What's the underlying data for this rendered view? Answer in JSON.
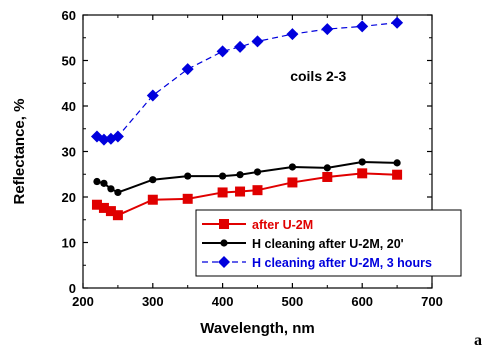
{
  "chart_data": {
    "type": "line",
    "xlabel": "Wavelength, nm",
    "ylabel": "Reflectance, %",
    "xlim": [
      200,
      700
    ],
    "ylim": [
      0,
      60
    ],
    "xticks": [
      "200",
      "300",
      "400",
      "500",
      "600",
      "700"
    ],
    "yticks": [
      "0",
      "10",
      "20",
      "30",
      "40",
      "50",
      "60"
    ],
    "annotation": "coils 2-3",
    "panel_label": "a",
    "legend_position": "bottom-right",
    "series": [
      {
        "name": "after U-2M",
        "color": "#e00000",
        "marker": "square",
        "line": "solid",
        "x": [
          220,
          230,
          240,
          250,
          300,
          350,
          400,
          425,
          450,
          500,
          550,
          600,
          650
        ],
        "y": [
          18.3,
          17.6,
          16.9,
          16.0,
          19.4,
          19.6,
          21.0,
          21.2,
          21.5,
          23.2,
          24.4,
          25.2,
          24.9
        ]
      },
      {
        "name": "H cleaning after U-2M, 20'",
        "color": "#000000",
        "marker": "circle",
        "line": "solid",
        "x": [
          220,
          230,
          240,
          250,
          300,
          350,
          400,
          425,
          450,
          500,
          550,
          600,
          650
        ],
        "y": [
          23.4,
          23.0,
          21.8,
          21.0,
          23.8,
          24.6,
          24.6,
          24.9,
          25.5,
          26.6,
          26.4,
          27.7,
          27.5
        ]
      },
      {
        "name": "H cleaning after U-2M, 3 hours",
        "color": "#0000dd",
        "marker": "diamond",
        "line": "dashed",
        "x": [
          220,
          230,
          240,
          250,
          300,
          350,
          400,
          425,
          450,
          500,
          550,
          600,
          650
        ],
        "y": [
          33.3,
          32.6,
          32.8,
          33.3,
          42.3,
          48.1,
          52.0,
          53.0,
          54.2,
          55.8,
          56.9,
          57.5,
          58.3
        ]
      }
    ]
  }
}
